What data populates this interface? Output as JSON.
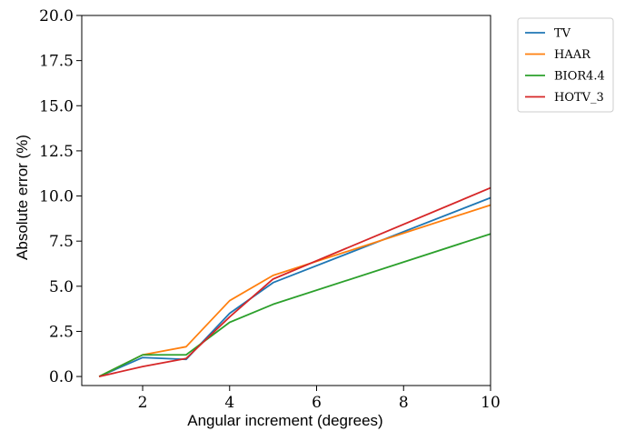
{
  "chart_data": {
    "type": "line",
    "xlabel": "Angular increment (degrees)",
    "ylabel": "Absolute error (%)",
    "xlim": [
      0.6,
      10
    ],
    "ylim": [
      -0.5,
      20
    ],
    "x_ticks": [
      2,
      4,
      6,
      8,
      10
    ],
    "y_ticks": [
      0.0,
      2.5,
      5.0,
      7.5,
      10.0,
      12.5,
      15.0,
      17.5,
      20.0
    ],
    "grid": false,
    "legend_position": "outside-top-right",
    "series": [
      {
        "name": "TV",
        "color": "#1f77b4",
        "x": [
          1,
          2,
          3,
          4,
          5,
          10
        ],
        "y": [
          0.0,
          1.05,
          0.95,
          3.5,
          5.2,
          9.9
        ]
      },
      {
        "name": "HAAR",
        "color": "#ff7f0e",
        "x": [
          1,
          2,
          3,
          4,
          5,
          10
        ],
        "y": [
          0.0,
          1.2,
          1.65,
          4.2,
          5.6,
          9.5
        ]
      },
      {
        "name": "BIOR4.4",
        "color": "#2ca02c",
        "x": [
          1,
          2,
          3,
          4,
          5,
          10
        ],
        "y": [
          0.0,
          1.2,
          1.2,
          3.0,
          4.0,
          7.9
        ]
      },
      {
        "name": "HOTV_3",
        "color": "#d62728",
        "x": [
          1,
          2,
          3,
          4,
          5,
          10
        ],
        "y": [
          0.0,
          0.55,
          1.0,
          3.3,
          5.4,
          10.45
        ]
      }
    ]
  }
}
